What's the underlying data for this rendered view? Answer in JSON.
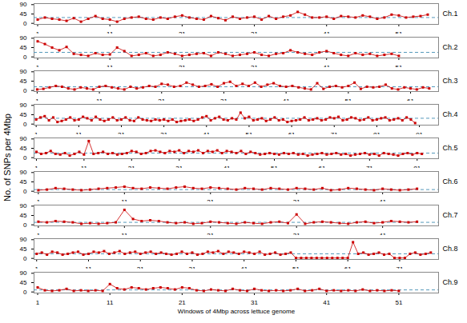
{
  "chart_data": [
    {
      "type": "line",
      "title": "Ch.1",
      "color": "#cc0000",
      "marker": "square",
      "grid": false,
      "x": [
        1,
        2,
        3,
        4,
        5,
        6,
        7,
        8,
        9,
        10,
        11,
        12,
        13,
        14,
        15,
        16,
        17,
        18,
        19,
        20,
        21,
        22,
        23,
        24,
        25,
        26,
        27,
        28,
        29,
        30,
        31,
        32,
        33,
        34,
        35,
        36,
        37,
        38,
        39,
        40,
        41,
        42,
        43,
        44,
        45,
        46,
        47,
        48,
        49,
        50,
        51,
        52,
        53,
        54,
        55
      ],
      "values": [
        18,
        28,
        22,
        18,
        12,
        25,
        8,
        22,
        35,
        22,
        18,
        8,
        22,
        28,
        32,
        22,
        18,
        28,
        22,
        32,
        38,
        28,
        22,
        18,
        35,
        25,
        15,
        32,
        22,
        28,
        32,
        18,
        35,
        22,
        32,
        38,
        55,
        42,
        28,
        28,
        32,
        22,
        35,
        32,
        28,
        38,
        32,
        22,
        28,
        42,
        38,
        28,
        32,
        35,
        42
      ],
      "mean_line": {
        "value": 28,
        "color": "#5599bb",
        "line_style": "dashed"
      },
      "xlim": [
        0.5,
        56.5
      ],
      "xticks": [
        1,
        11,
        21,
        31,
        41,
        51
      ],
      "ylim": [
        -5,
        95
      ],
      "yticks": [
        0,
        45,
        90
      ]
    },
    {
      "type": "line",
      "title": "Ch.2",
      "color": "#cc0000",
      "marker": "square",
      "grid": false,
      "x": [
        1,
        2,
        3,
        4,
        5,
        6,
        7,
        8,
        9,
        10,
        11,
        12,
        13,
        14,
        15,
        16,
        17,
        18,
        19,
        20,
        21,
        22,
        23,
        24,
        25,
        26,
        27,
        28,
        29,
        30,
        31,
        32,
        33,
        34,
        35,
        36,
        37,
        38,
        39,
        40,
        41,
        42,
        43,
        44,
        45,
        46,
        47,
        48,
        49,
        50,
        51
      ],
      "values": [
        75,
        62,
        45,
        32,
        48,
        15,
        10,
        5,
        18,
        10,
        12,
        45,
        28,
        5,
        10,
        18,
        5,
        10,
        22,
        15,
        5,
        10,
        15,
        18,
        5,
        22,
        15,
        5,
        10,
        15,
        22,
        10,
        5,
        15,
        18,
        32,
        22,
        15,
        10,
        22,
        28,
        18,
        10,
        5,
        18,
        10,
        15,
        5,
        10,
        15,
        5
      ],
      "mean_line": {
        "value": 22,
        "color": "#5599bb",
        "line_style": "dashed"
      },
      "xlim": [
        0.5,
        56.5
      ],
      "xticks": [
        1,
        11,
        21,
        31,
        41,
        51
      ],
      "ylim": [
        -5,
        95
      ],
      "yticks": [
        0,
        45,
        90
      ]
    },
    {
      "type": "line",
      "title": "Ch.3",
      "color": "#cc0000",
      "marker": "square",
      "grid": false,
      "x": [
        1,
        2,
        3,
        4,
        5,
        6,
        7,
        8,
        9,
        10,
        11,
        12,
        13,
        14,
        15,
        16,
        17,
        18,
        19,
        20,
        21,
        22,
        23,
        24,
        25,
        26,
        27,
        28,
        29,
        30,
        31,
        32,
        33,
        34,
        35,
        36,
        37,
        38,
        39,
        40,
        41,
        42,
        43,
        44,
        45,
        46,
        47,
        48,
        49,
        50,
        51,
        52,
        53,
        54,
        55,
        56,
        57,
        58,
        59,
        60,
        61,
        62,
        63,
        64
      ],
      "values": [
        5,
        8,
        15,
        22,
        18,
        10,
        5,
        15,
        10,
        5,
        18,
        22,
        15,
        10,
        5,
        18,
        10,
        15,
        22,
        18,
        32,
        28,
        18,
        22,
        38,
        28,
        18,
        22,
        30,
        18,
        35,
        42,
        22,
        32,
        22,
        38,
        18,
        28,
        35,
        22,
        18,
        22,
        15,
        10,
        5,
        35,
        8,
        18,
        22,
        15,
        22,
        38,
        8,
        18,
        15,
        18,
        28,
        10,
        5,
        15,
        10,
        5,
        15,
        10
      ],
      "mean_line": {
        "value": 18,
        "color": "#5599bb",
        "line_style": "dashed"
      },
      "xlim": [
        0.5,
        65.5
      ],
      "xticks": [
        1,
        11,
        21,
        31,
        41,
        51,
        61
      ],
      "ylim": [
        -5,
        95
      ],
      "yticks": [
        0,
        45,
        90
      ]
    },
    {
      "type": "line",
      "title": "Ch.4",
      "color": "#cc0000",
      "marker": "square",
      "grid": false,
      "x": [
        1,
        2,
        3,
        4,
        5,
        6,
        7,
        8,
        9,
        10,
        11,
        12,
        13,
        14,
        15,
        16,
        17,
        18,
        19,
        20,
        21,
        22,
        23,
        24,
        25,
        26,
        27,
        28,
        29,
        30,
        31,
        32,
        33,
        34,
        35,
        36,
        37,
        38,
        39,
        40,
        41,
        42,
        43,
        44,
        45,
        46,
        47,
        48,
        49,
        50,
        51,
        52,
        53,
        54,
        55,
        56,
        57,
        58,
        59,
        60,
        61,
        62,
        63,
        64,
        65,
        66,
        67,
        68,
        69,
        70,
        71,
        72,
        73,
        74,
        75,
        76,
        77,
        78,
        79,
        80,
        81,
        82,
        83,
        84,
        85,
        86,
        87,
        88,
        89,
        90
      ],
      "values": [
        22,
        32,
        38,
        18,
        32,
        10,
        15,
        22,
        32,
        18,
        22,
        35,
        28,
        18,
        35,
        22,
        15,
        22,
        32,
        18,
        22,
        32,
        18,
        15,
        32,
        22,
        18,
        15,
        22,
        18,
        22,
        15,
        22,
        10,
        15,
        18,
        22,
        15,
        22,
        32,
        38,
        18,
        28,
        35,
        22,
        18,
        28,
        22,
        55,
        28,
        35,
        18,
        22,
        28,
        15,
        22,
        32,
        18,
        22,
        10,
        15,
        18,
        22,
        32,
        18,
        22,
        28,
        18,
        22,
        32,
        28,
        35,
        18,
        22,
        32,
        28,
        18,
        22,
        32,
        18,
        22,
        28,
        32,
        18,
        22,
        28,
        18,
        32,
        22,
        5
      ],
      "mean_line": {
        "value": 28,
        "color": "#5599bb",
        "line_style": "dashed"
      },
      "xlim": [
        0.5,
        95.5
      ],
      "xticks": [
        1,
        11,
        21,
        31,
        41,
        51,
        61,
        71,
        81,
        91
      ],
      "ylim": [
        -5,
        95
      ],
      "yticks": [
        0,
        45,
        90
      ]
    },
    {
      "type": "line",
      "title": "Ch.5",
      "ylabel": "No. of SNPs per 4Mbp",
      "color": "#cc0000",
      "marker": "square",
      "grid": false,
      "x": [
        1,
        2,
        3,
        4,
        5,
        6,
        7,
        8,
        9,
        10,
        11,
        12,
        13,
        14,
        15,
        16,
        17,
        18,
        19,
        20,
        21,
        22,
        23,
        24,
        25,
        26,
        27,
        28,
        29,
        30,
        31,
        32,
        33,
        34,
        35,
        36,
        37,
        38,
        39,
        40,
        41,
        42,
        43,
        44,
        45,
        46,
        47,
        48,
        49,
        50,
        51,
        52,
        53,
        54,
        55,
        56,
        57,
        58,
        59,
        60,
        61,
        62,
        63,
        64,
        65,
        66,
        67,
        68,
        69,
        70,
        71,
        72,
        73,
        74,
        75,
        76,
        77,
        78,
        79,
        80,
        81,
        82
      ],
      "values": [
        28,
        18,
        22,
        32,
        18,
        15,
        22,
        10,
        18,
        28,
        15,
        80,
        18,
        22,
        28,
        18,
        22,
        15,
        18,
        22,
        32,
        28,
        18,
        22,
        32,
        35,
        28,
        22,
        32,
        28,
        35,
        22,
        32,
        28,
        35,
        22,
        32,
        28,
        35,
        22,
        32,
        28,
        22,
        32,
        18,
        28,
        22,
        15,
        18,
        22,
        18,
        15,
        22,
        18,
        22,
        15,
        18,
        10,
        15,
        18,
        22,
        15,
        18,
        22,
        15,
        18,
        10,
        15,
        18,
        22,
        15,
        18,
        10,
        22,
        18,
        15,
        10,
        18,
        22,
        15,
        22,
        18
      ],
      "mean_line": {
        "value": 22,
        "color": "#5599bb",
        "line_style": "dashed"
      },
      "xlim": [
        0.5,
        85.5
      ],
      "xticks": [
        1,
        11,
        21,
        31,
        41,
        51,
        61,
        71,
        81
      ],
      "ylim": [
        -5,
        95
      ],
      "yticks": [
        0,
        45,
        90
      ]
    },
    {
      "type": "line",
      "title": "Ch.6",
      "color": "#cc0000",
      "marker": "square",
      "grid": false,
      "x": [
        1,
        2,
        3,
        4,
        5,
        6,
        7,
        8,
        9,
        10,
        11,
        12,
        13,
        14,
        15,
        16,
        17,
        18,
        19,
        20,
        21,
        22,
        23,
        24,
        25,
        26,
        27,
        28,
        29,
        30,
        31,
        32,
        33,
        34,
        35,
        36,
        37,
        38,
        39,
        40,
        41,
        42,
        43,
        44,
        45
      ],
      "values": [
        5,
        8,
        15,
        12,
        8,
        5,
        8,
        12,
        15,
        18,
        22,
        15,
        12,
        18,
        15,
        12,
        18,
        22,
        15,
        12,
        18,
        15,
        12,
        8,
        15,
        12,
        8,
        15,
        12,
        8,
        15,
        12,
        8,
        15,
        5,
        8,
        15,
        12,
        8,
        5,
        12,
        8,
        5,
        8,
        12
      ],
      "mean_line": {
        "value": 8,
        "color": "#5599bb",
        "line_style": "dashed"
      },
      "xlim": [
        0.5,
        47.5
      ],
      "xticks": [
        1,
        11,
        21,
        31,
        41
      ],
      "ylim": [
        -5,
        95
      ],
      "yticks": [
        0,
        45,
        90
      ]
    },
    {
      "type": "line",
      "title": "Ch.7",
      "color": "#cc0000",
      "marker": "square",
      "grid": false,
      "x": [
        1,
        2,
        3,
        4,
        5,
        6,
        7,
        8,
        9,
        10,
        11,
        12,
        13,
        14,
        15,
        16,
        17,
        18,
        19,
        20,
        21,
        22,
        23,
        24,
        25,
        26,
        27,
        28,
        29,
        30,
        31,
        32,
        33,
        34,
        35,
        36,
        37,
        38,
        39,
        40,
        41,
        42,
        43,
        44,
        45
      ],
      "values": [
        15,
        12,
        18,
        15,
        12,
        5,
        8,
        5,
        8,
        12,
        72,
        28,
        18,
        22,
        18,
        12,
        8,
        12,
        5,
        8,
        15,
        12,
        8,
        5,
        12,
        8,
        5,
        12,
        15,
        8,
        50,
        5,
        12,
        15,
        12,
        8,
        5,
        12,
        15,
        8,
        12,
        18,
        15,
        12,
        15
      ],
      "mean_line": {
        "value": 12,
        "color": "#5599bb",
        "line_style": "dashed"
      },
      "xlim": [
        0.5,
        47.5
      ],
      "xticks": [
        1,
        11,
        21,
        31,
        41
      ],
      "ylim": [
        -5,
        95
      ],
      "yticks": [
        0,
        45,
        90
      ]
    },
    {
      "type": "line",
      "title": "Ch.8",
      "color": "#cc0000",
      "marker": "square",
      "grid": false,
      "x": [
        1,
        2,
        3,
        4,
        5,
        6,
        7,
        8,
        9,
        10,
        11,
        12,
        13,
        14,
        15,
        16,
        17,
        18,
        19,
        20,
        21,
        22,
        23,
        24,
        25,
        26,
        27,
        28,
        29,
        30,
        31,
        32,
        33,
        34,
        35,
        36,
        37,
        38,
        39,
        40,
        41,
        42,
        43,
        44,
        45,
        46,
        47,
        48,
        49,
        50,
        51,
        52,
        53,
        54,
        55,
        56,
        57,
        58,
        59,
        60,
        61,
        62,
        63,
        64,
        65,
        66,
        67,
        68,
        69,
        70,
        71,
        72,
        73,
        74,
        75,
        76,
        77
      ],
      "values": [
        22,
        28,
        18,
        32,
        28,
        18,
        22,
        28,
        32,
        18,
        22,
        32,
        28,
        35,
        22,
        28,
        35,
        22,
        28,
        32,
        22,
        28,
        32,
        22,
        28,
        22,
        18,
        22,
        32,
        22,
        28,
        18,
        22,
        32,
        28,
        35,
        22,
        32,
        28,
        22,
        32,
        28,
        22,
        32,
        18,
        22,
        28,
        18,
        22,
        28,
        2,
        2,
        2,
        2,
        2,
        2,
        2,
        2,
        2,
        2,
        2,
        78,
        22,
        28,
        18,
        22,
        28,
        18,
        22,
        2,
        2,
        2,
        22,
        28,
        18,
        22,
        28
      ],
      "mean_line": {
        "value": 22,
        "color": "#5599bb",
        "line_style": "dashed"
      },
      "xlim": [
        0.5,
        78.5
      ],
      "xticks": [
        1,
        11,
        21,
        31,
        41,
        51,
        61,
        71
      ],
      "ylim": [
        -5,
        95
      ],
      "yticks": [
        0,
        45,
        90
      ]
    },
    {
      "type": "line",
      "title": "Ch.9",
      "xlabel": "Windows of 4Mbp across lettuce genome",
      "color": "#cc0000",
      "marker": "square",
      "grid": false,
      "x": [
        1,
        2,
        3,
        4,
        5,
        6,
        7,
        8,
        9,
        10,
        11,
        12,
        13,
        14,
        15,
        16,
        17,
        18,
        19,
        20,
        21,
        22,
        23,
        24,
        25,
        26,
        27,
        28,
        29,
        30,
        31,
        32,
        33,
        34,
        35,
        36,
        37,
        38,
        39,
        40,
        41,
        42,
        43,
        44,
        45,
        46,
        47,
        48,
        49,
        50,
        51
      ],
      "values": [
        22,
        8,
        5,
        8,
        15,
        5,
        8,
        5,
        8,
        5,
        38,
        18,
        12,
        22,
        18,
        12,
        18,
        22,
        18,
        12,
        22,
        18,
        8,
        5,
        12,
        8,
        5,
        15,
        8,
        5,
        15,
        8,
        5,
        8,
        5,
        8,
        15,
        5,
        8,
        15,
        5,
        8,
        5,
        8,
        5,
        12,
        5,
        8,
        5,
        8,
        5
      ],
      "mean_line": {
        "value": 10,
        "color": "#5599bb",
        "line_style": "dashed"
      },
      "xlim": [
        0.5,
        56.5
      ],
      "xticks": [
        1,
        11,
        21,
        31,
        41,
        51
      ],
      "ylim": [
        -5,
        95
      ],
      "yticks": [
        0,
        45,
        90
      ]
    }
  ]
}
